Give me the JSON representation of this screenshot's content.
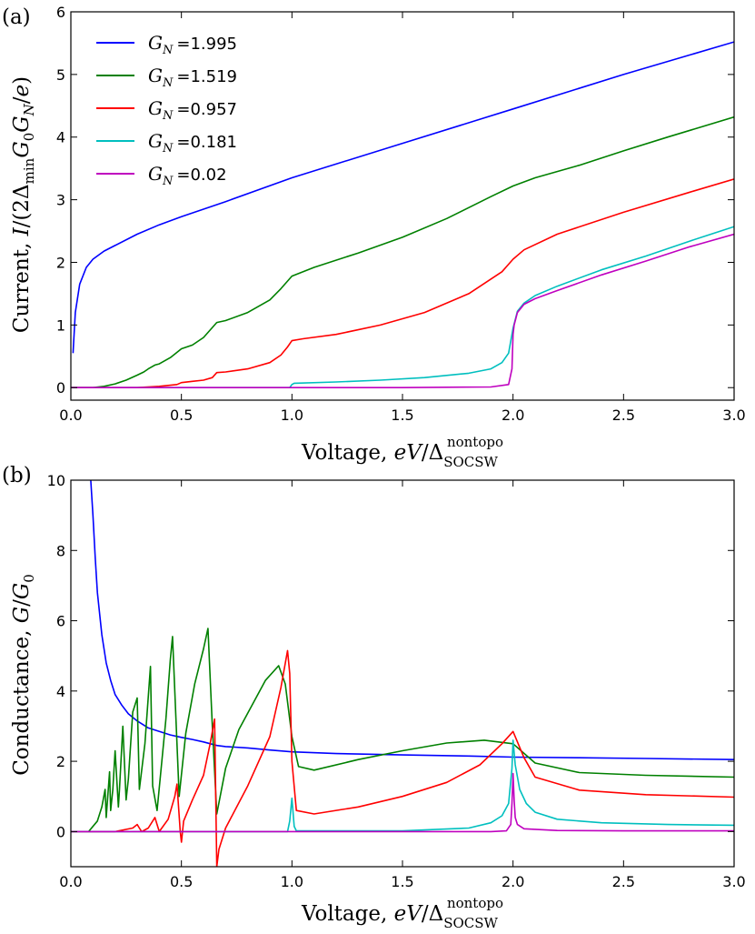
{
  "chart_data": [
    {
      "panel_label": "(a)",
      "type": "line",
      "xlabel": "Voltage, eV/Δ_SOCSW^nontopo",
      "ylabel": "Current, I/(2Δ_min G_0 G_N/e)",
      "xlim": [
        0.0,
        3.0
      ],
      "ylim": [
        -0.2,
        6.0
      ],
      "xticks": [
        "0.0",
        "0.5",
        "1.0",
        "1.5",
        "2.0",
        "2.5",
        "3.0"
      ],
      "yticks": [
        "0",
        "1",
        "2",
        "3",
        "4",
        "5",
        "6"
      ],
      "legend_position": "upper-left",
      "series": [
        {
          "name": "G_N =1.995",
          "legend_prefix": "G",
          "legend_sub": "N",
          "legend_value": "=1.995",
          "color": "#0000ff",
          "x": [
            0.01,
            0.02,
            0.04,
            0.07,
            0.1,
            0.15,
            0.2,
            0.3,
            0.4,
            0.5,
            0.7,
            1.0,
            1.5,
            2.0,
            2.5,
            3.0
          ],
          "y": [
            0.55,
            1.2,
            1.65,
            1.92,
            2.05,
            2.18,
            2.27,
            2.45,
            2.6,
            2.73,
            2.97,
            3.35,
            3.9,
            4.45,
            5.0,
            5.52
          ]
        },
        {
          "name": "G_N =1.519",
          "legend_prefix": "G",
          "legend_sub": "N",
          "legend_value": "=1.519",
          "color": "#008000",
          "x": [
            0.0,
            0.1,
            0.15,
            0.2,
            0.25,
            0.3,
            0.33,
            0.35,
            0.38,
            0.4,
            0.45,
            0.5,
            0.55,
            0.6,
            0.66,
            0.7,
            0.8,
            0.9,
            0.95,
            1.0,
            1.1,
            1.3,
            1.5,
            1.7,
            1.9,
            2.0,
            2.1,
            2.3,
            2.5,
            2.7,
            3.0
          ],
          "y": [
            0.0,
            0.0,
            0.02,
            0.06,
            0.12,
            0.2,
            0.25,
            0.3,
            0.36,
            0.38,
            0.48,
            0.62,
            0.68,
            0.8,
            1.04,
            1.07,
            1.2,
            1.4,
            1.58,
            1.78,
            1.92,
            2.15,
            2.4,
            2.7,
            3.05,
            3.22,
            3.35,
            3.55,
            3.78,
            4.0,
            4.32
          ]
        },
        {
          "name": "G_N =0.957",
          "legend_prefix": "G",
          "legend_sub": "N",
          "legend_value": "=0.957",
          "color": "#ff0000",
          "x": [
            0.0,
            0.2,
            0.3,
            0.4,
            0.48,
            0.5,
            0.55,
            0.6,
            0.64,
            0.66,
            0.7,
            0.8,
            0.9,
            0.95,
            0.98,
            1.0,
            1.05,
            1.2,
            1.4,
            1.6,
            1.8,
            1.95,
            2.0,
            2.05,
            2.2,
            2.5,
            2.8,
            3.0
          ],
          "y": [
            0.0,
            0.0,
            0.0,
            0.02,
            0.05,
            0.08,
            0.1,
            0.12,
            0.16,
            0.24,
            0.25,
            0.3,
            0.4,
            0.52,
            0.65,
            0.75,
            0.78,
            0.85,
            1.0,
            1.2,
            1.5,
            1.85,
            2.05,
            2.2,
            2.45,
            2.8,
            3.12,
            3.33
          ]
        },
        {
          "name": "G_N =0.181",
          "legend_prefix": "G",
          "legend_sub": "N",
          "legend_value": "=0.181",
          "color": "#00bfbf",
          "x": [
            0.0,
            0.5,
            0.99,
            1.0,
            1.01,
            1.2,
            1.4,
            1.6,
            1.8,
            1.9,
            1.95,
            1.98,
            2.0,
            2.02,
            2.05,
            2.1,
            2.2,
            2.4,
            2.6,
            2.8,
            3.0
          ],
          "y": [
            0.0,
            0.0,
            0.0,
            0.05,
            0.07,
            0.09,
            0.12,
            0.16,
            0.23,
            0.3,
            0.4,
            0.55,
            0.95,
            1.22,
            1.35,
            1.47,
            1.62,
            1.88,
            2.1,
            2.34,
            2.57
          ]
        },
        {
          "name": "G_N =0.02",
          "legend_prefix": "G",
          "legend_sub": "N",
          "legend_value": "=0.02",
          "color": "#bf00bf",
          "x": [
            0.0,
            1.0,
            1.5,
            1.9,
            1.98,
            1.995,
            2.0,
            2.005,
            2.02,
            2.05,
            2.1,
            2.2,
            2.4,
            2.6,
            2.8,
            3.0
          ],
          "y": [
            0.0,
            0.0,
            0.0,
            0.01,
            0.05,
            0.3,
            0.85,
            1.0,
            1.2,
            1.33,
            1.42,
            1.55,
            1.8,
            2.02,
            2.25,
            2.45
          ]
        }
      ]
    },
    {
      "panel_label": "(b)",
      "type": "line",
      "xlabel": "Voltage, eV/Δ_SOCSW^nontopo",
      "ylabel": "Conductance, G/G_0",
      "xlim": [
        0.0,
        3.0
      ],
      "ylim": [
        -1.0,
        10.0
      ],
      "xticks": [
        "0.0",
        "0.5",
        "1.0",
        "1.5",
        "2.0",
        "2.5",
        "3.0"
      ],
      "yticks": [
        "0",
        "2",
        "4",
        "6",
        "8",
        "10"
      ],
      "series": [
        {
          "name": "G_N =1.995",
          "color": "#0000ff",
          "x": [
            0.09,
            0.1,
            0.11,
            0.12,
            0.14,
            0.16,
            0.18,
            0.2,
            0.23,
            0.26,
            0.3,
            0.35,
            0.4,
            0.45,
            0.5,
            0.55,
            0.6,
            0.66,
            0.7,
            0.8,
            0.9,
            1.0,
            1.2,
            1.5,
            1.8,
            2.0,
            2.3,
            2.6,
            3.0
          ],
          "y": [
            10.0,
            9.0,
            7.8,
            6.8,
            5.6,
            4.8,
            4.3,
            3.9,
            3.6,
            3.35,
            3.15,
            2.95,
            2.85,
            2.75,
            2.68,
            2.62,
            2.55,
            2.45,
            2.42,
            2.38,
            2.32,
            2.27,
            2.22,
            2.18,
            2.15,
            2.12,
            2.1,
            2.08,
            2.05
          ]
        },
        {
          "name": "G_N =1.519",
          "color": "#008000",
          "x": [
            0.08,
            0.12,
            0.14,
            0.155,
            0.16,
            0.175,
            0.18,
            0.19,
            0.2,
            0.215,
            0.22,
            0.235,
            0.25,
            0.26,
            0.28,
            0.3,
            0.31,
            0.335,
            0.36,
            0.37,
            0.39,
            0.43,
            0.45,
            0.46,
            0.49,
            0.52,
            0.56,
            0.6,
            0.62,
            0.64,
            0.66,
            0.7,
            0.76,
            0.82,
            0.88,
            0.94,
            0.97,
            1.0,
            1.03,
            1.1,
            1.3,
            1.5,
            1.7,
            1.87,
            2.0,
            2.1,
            2.3,
            2.6,
            3.0
          ],
          "y": [
            0.0,
            0.3,
            0.7,
            1.2,
            0.4,
            1.7,
            0.6,
            1.2,
            2.3,
            0.7,
            1.2,
            3.0,
            0.9,
            1.5,
            3.4,
            3.8,
            1.2,
            2.5,
            4.7,
            1.3,
            0.6,
            3.2,
            4.9,
            5.55,
            1.0,
            2.8,
            4.2,
            5.2,
            5.78,
            3.0,
            0.5,
            1.8,
            2.9,
            3.6,
            4.3,
            4.72,
            4.2,
            2.7,
            1.85,
            1.75,
            2.05,
            2.3,
            2.52,
            2.6,
            2.5,
            1.95,
            1.68,
            1.6,
            1.55
          ]
        },
        {
          "name": "G_N =0.957",
          "color": "#ff0000",
          "x": [
            0.0,
            0.2,
            0.28,
            0.3,
            0.31,
            0.32,
            0.35,
            0.38,
            0.39,
            0.4,
            0.44,
            0.47,
            0.48,
            0.495,
            0.5,
            0.51,
            0.55,
            0.6,
            0.63,
            0.65,
            0.66,
            0.67,
            0.7,
            0.8,
            0.9,
            0.95,
            0.98,
            0.99,
            1.0,
            1.02,
            1.1,
            1.3,
            1.5,
            1.7,
            1.85,
            1.95,
            2.0,
            2.05,
            2.1,
            2.3,
            2.6,
            3.0
          ],
          "y": [
            0.0,
            0.0,
            0.1,
            0.2,
            0.1,
            0.0,
            0.1,
            0.4,
            0.2,
            0.0,
            0.35,
            1.0,
            1.35,
            0.0,
            -0.3,
            0.3,
            0.9,
            1.6,
            2.5,
            3.2,
            -1.0,
            -0.5,
            0.1,
            1.3,
            2.7,
            4.1,
            5.15,
            4.5,
            2.0,
            0.6,
            0.5,
            0.7,
            1.0,
            1.4,
            1.9,
            2.5,
            2.85,
            2.1,
            1.55,
            1.18,
            1.05,
            0.98
          ]
        },
        {
          "name": "G_N =0.181",
          "color": "#00bfbf",
          "x": [
            0.0,
            0.98,
            0.99,
            1.0,
            1.01,
            1.02,
            1.5,
            1.8,
            1.9,
            1.95,
            1.98,
            1.995,
            2.0,
            2.01,
            2.03,
            2.06,
            2.1,
            2.2,
            2.4,
            2.7,
            3.0
          ],
          "y": [
            0.0,
            0.0,
            0.3,
            0.95,
            0.15,
            0.02,
            0.02,
            0.1,
            0.25,
            0.45,
            0.8,
            1.8,
            2.6,
            1.9,
            1.2,
            0.8,
            0.55,
            0.35,
            0.25,
            0.2,
            0.18
          ]
        },
        {
          "name": "G_N =0.02",
          "color": "#bf00bf",
          "x": [
            0.0,
            1.9,
            1.97,
            1.99,
            1.995,
            2.0,
            2.005,
            2.01,
            2.02,
            2.05,
            2.2,
            2.5,
            3.0
          ],
          "y": [
            0.0,
            0.0,
            0.02,
            0.2,
            0.8,
            1.65,
            0.9,
            0.4,
            0.2,
            0.08,
            0.03,
            0.02,
            0.02
          ]
        }
      ]
    }
  ]
}
